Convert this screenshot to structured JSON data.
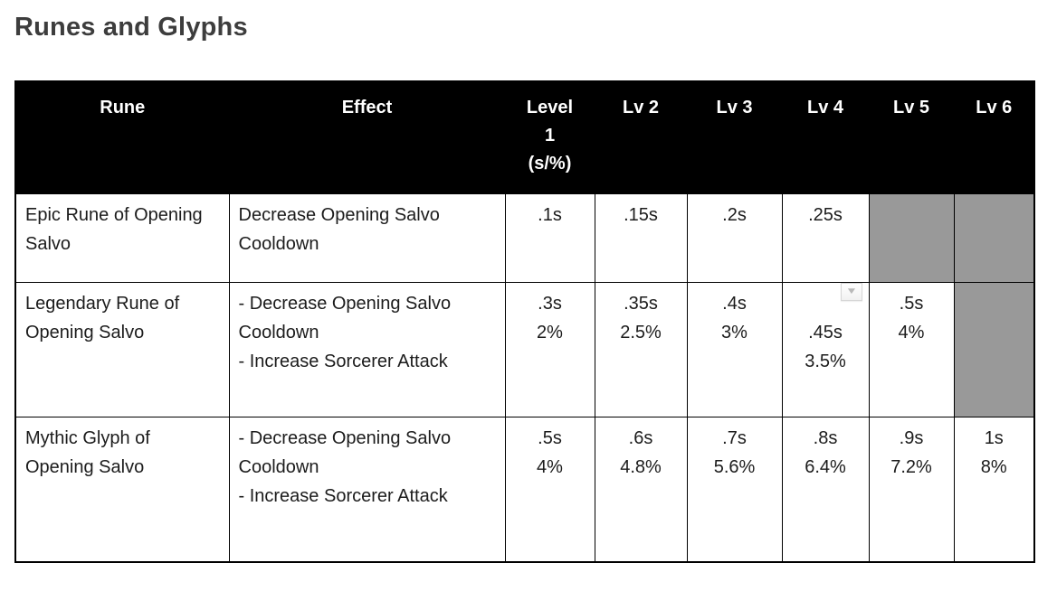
{
  "page": {
    "title": "Runes and Glyphs"
  },
  "colors": {
    "header_bg": "#000000",
    "header_text": "#ffffff",
    "unavailable_cell_bg": "#999999",
    "border": "#000000",
    "title_text": "#3d3d3d",
    "body_text": "#1c1c1c"
  },
  "icons": {
    "dropdown_glyph": "▼"
  },
  "table": {
    "headers": [
      "Rune",
      "Effect",
      "Level\n1\n(s/%)",
      "Lv 2",
      "Lv 3",
      "Lv 4",
      "Lv 5",
      "Lv 6"
    ],
    "rows": [
      {
        "rune": "Epic Rune of Opening Salvo",
        "effect": "Decrease Opening Salvo Cooldown",
        "levels": [
          ".1s",
          ".15s",
          ".2s",
          ".25s",
          "",
          ""
        ],
        "unavailable_levels": [
          "Lv 5",
          "Lv 6"
        ]
      },
      {
        "rune": "Legendary Rune of Opening Salvo",
        "effect": "- Decrease Opening Salvo Cooldown\n- Increase Sorcerer Attack",
        "levels": [
          ".3s\n2%",
          ".35s\n2.5%",
          ".4s\n3%",
          ".45s\n3.5%",
          ".5s\n4%",
          ""
        ],
        "unavailable_levels": [
          "Lv 6"
        ],
        "dropdown_on_level": "Lv 4"
      },
      {
        "rune": "Mythic Glyph of Opening Salvo",
        "effect": "- Decrease Opening Salvo Cooldown\n- Increase Sorcerer Attack",
        "levels": [
          ".5s\n4%",
          ".6s\n4.8%",
          ".7s\n5.6%",
          ".8s\n6.4%",
          ".9s\n7.2%",
          "1s\n8%"
        ],
        "unavailable_levels": []
      }
    ]
  }
}
